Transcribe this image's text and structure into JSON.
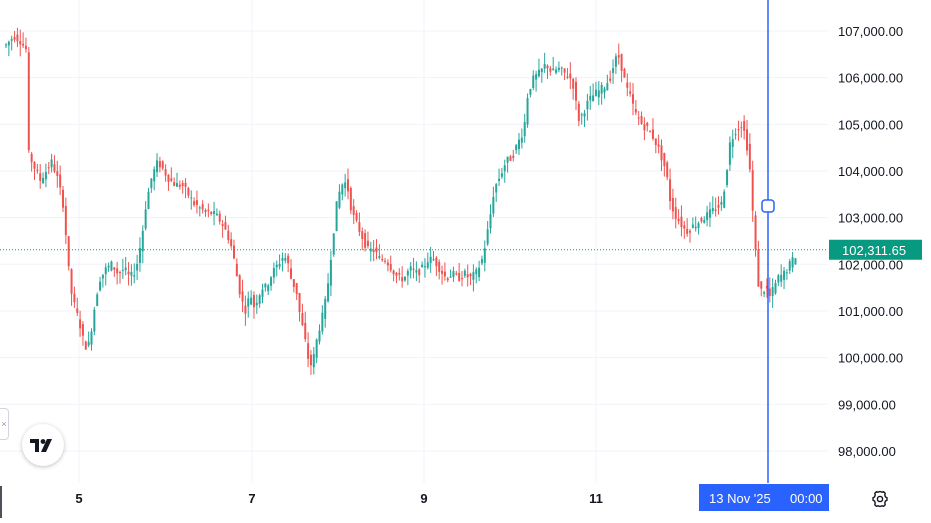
{
  "chart_data": {
    "type": "candlestick",
    "x_tick_labels": [
      "5",
      "7",
      "9",
      "11"
    ],
    "y_tick_labels": [
      "107,000.00",
      "106,000.00",
      "105,000.00",
      "104,000.00",
      "103,000.00",
      "102,000.00",
      "101,000.00",
      "100,000.00",
      "99,000.00",
      "98,000.00"
    ],
    "y_ticks": [
      107000,
      106000,
      105000,
      104000,
      103000,
      102000,
      101000,
      100000,
      99000,
      98000
    ],
    "ylim": [
      97300,
      107500
    ],
    "last_price": 102311.65,
    "last_price_label": "102,311.65",
    "crosshair": {
      "date_label": "13 Nov '25",
      "time_label": "00:00",
      "price": 103250
    },
    "grid": true,
    "colors": {
      "up": "#26a69a",
      "down": "#ef5350",
      "crosshair": "#2962ff",
      "last_price": "#089981"
    },
    "path_keypoints": [
      [
        0,
        106700
      ],
      [
        8,
        106900
      ],
      [
        14,
        106800
      ],
      [
        20,
        106600
      ],
      [
        22,
        104400
      ],
      [
        28,
        104100
      ],
      [
        34,
        103800
      ],
      [
        40,
        104000
      ],
      [
        46,
        104200
      ],
      [
        52,
        103800
      ],
      [
        58,
        103200
      ],
      [
        62,
        102000
      ],
      [
        66,
        101300
      ],
      [
        70,
        101000
      ],
      [
        74,
        100700
      ],
      [
        78,
        100300
      ],
      [
        82,
        100200
      ],
      [
        86,
        100700
      ],
      [
        90,
        101300
      ],
      [
        94,
        101700
      ],
      [
        100,
        101900
      ],
      [
        106,
        102000
      ],
      [
        112,
        101800
      ],
      [
        118,
        101900
      ],
      [
        124,
        101700
      ],
      [
        130,
        101900
      ],
      [
        136,
        102600
      ],
      [
        140,
        103300
      ],
      [
        146,
        103900
      ],
      [
        152,
        104200
      ],
      [
        158,
        104000
      ],
      [
        164,
        103800
      ],
      [
        170,
        103700
      ],
      [
        176,
        103700
      ],
      [
        182,
        103500
      ],
      [
        188,
        103300
      ],
      [
        194,
        103200
      ],
      [
        200,
        103100
      ],
      [
        206,
        103100
      ],
      [
        212,
        103000
      ],
      [
        218,
        102800
      ],
      [
        224,
        102500
      ],
      [
        228,
        102100
      ],
      [
        232,
        101600
      ],
      [
        236,
        101200
      ],
      [
        240,
        101000
      ],
      [
        244,
        101400
      ],
      [
        248,
        101100
      ],
      [
        252,
        101300
      ],
      [
        256,
        101500
      ],
      [
        260,
        101500
      ],
      [
        266,
        101800
      ],
      [
        272,
        102000
      ],
      [
        278,
        102200
      ],
      [
        282,
        102000
      ],
      [
        286,
        101600
      ],
      [
        290,
        101500
      ],
      [
        294,
        100900
      ],
      [
        298,
        100500
      ],
      [
        302,
        100000
      ],
      [
        306,
        99800
      ],
      [
        310,
        100300
      ],
      [
        314,
        100700
      ],
      [
        318,
        101000
      ],
      [
        322,
        101600
      ],
      [
        326,
        102400
      ],
      [
        330,
        103200
      ],
      [
        334,
        103600
      ],
      [
        338,
        103800
      ],
      [
        342,
        103600
      ],
      [
        346,
        103100
      ],
      [
        350,
        102900
      ],
      [
        356,
        102600
      ],
      [
        362,
        102300
      ],
      [
        368,
        102300
      ],
      [
        374,
        102100
      ],
      [
        380,
        102100
      ],
      [
        386,
        101900
      ],
      [
        392,
        101700
      ],
      [
        398,
        101700
      ],
      [
        404,
        101900
      ],
      [
        410,
        101800
      ],
      [
        416,
        101900
      ],
      [
        422,
        102100
      ],
      [
        428,
        102100
      ],
      [
        434,
        101900
      ],
      [
        440,
        101700
      ],
      [
        446,
        101800
      ],
      [
        452,
        101700
      ],
      [
        458,
        101800
      ],
      [
        464,
        101700
      ],
      [
        470,
        101800
      ],
      [
        476,
        102100
      ],
      [
        480,
        102500
      ],
      [
        484,
        103000
      ],
      [
        488,
        103600
      ],
      [
        494,
        103900
      ],
      [
        500,
        104200
      ],
      [
        506,
        104300
      ],
      [
        512,
        104600
      ],
      [
        518,
        104900
      ],
      [
        522,
        105700
      ],
      [
        528,
        106000
      ],
      [
        534,
        106100
      ],
      [
        540,
        106300
      ],
      [
        546,
        106100
      ],
      [
        552,
        106200
      ],
      [
        558,
        106100
      ],
      [
        564,
        106000
      ],
      [
        568,
        105800
      ],
      [
        572,
        105100
      ],
      [
        576,
        105200
      ],
      [
        580,
        105400
      ],
      [
        586,
        105600
      ],
      [
        592,
        105700
      ],
      [
        598,
        105800
      ],
      [
        604,
        106000
      ],
      [
        608,
        106300
      ],
      [
        612,
        106500
      ],
      [
        616,
        106200
      ],
      [
        620,
        105800
      ],
      [
        624,
        105600
      ],
      [
        630,
        105200
      ],
      [
        636,
        105000
      ],
      [
        642,
        104900
      ],
      [
        648,
        104700
      ],
      [
        654,
        104400
      ],
      [
        660,
        104000
      ],
      [
        664,
        103400
      ],
      [
        668,
        103100
      ],
      [
        674,
        102900
      ],
      [
        680,
        102700
      ],
      [
        686,
        102800
      ],
      [
        692,
        102900
      ],
      [
        698,
        103000
      ],
      [
        704,
        103100
      ],
      [
        710,
        103200
      ],
      [
        716,
        103300
      ],
      [
        720,
        103900
      ],
      [
        724,
        104600
      ],
      [
        730,
        104900
      ],
      [
        736,
        105000
      ],
      [
        740,
        104700
      ],
      [
        744,
        104000
      ],
      [
        748,
        102700
      ],
      [
        752,
        101600
      ],
      [
        756,
        101400
      ],
      [
        760,
        101500
      ],
      [
        764,
        101300
      ],
      [
        768,
        101500
      ],
      [
        772,
        101700
      ],
      [
        778,
        101800
      ],
      [
        784,
        102000
      ],
      [
        790,
        102200
      ],
      [
        795,
        102310
      ]
    ]
  },
  "ui": {
    "logo_text": "17",
    "side_tab_glyph": "×",
    "settings_icon": "gear-icon"
  }
}
